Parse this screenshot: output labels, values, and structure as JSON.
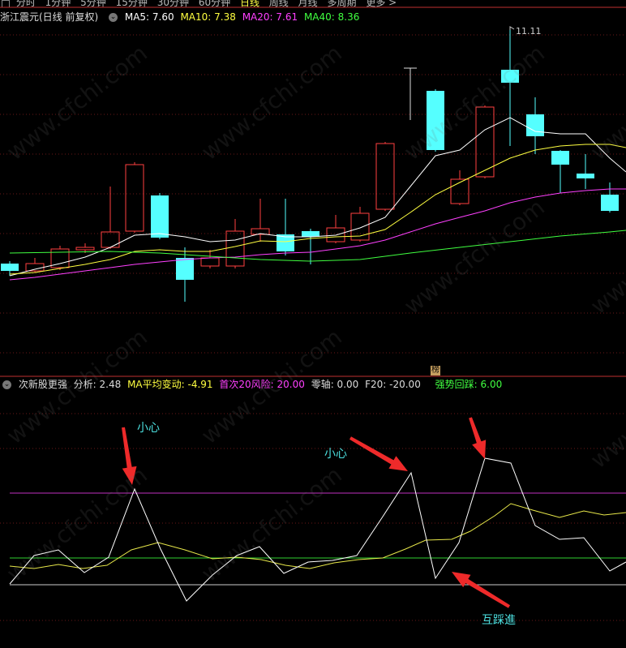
{
  "toolbar": {
    "periods": [
      "分时",
      "1分钟",
      "5分钟",
      "15分钟",
      "30分钟",
      "60分钟",
      "日线",
      "周线",
      "月线",
      "多周期",
      "更多"
    ],
    "active_period": "日线",
    "more_arrow": ">"
  },
  "main_chart": {
    "stock_title": "浙江震元(日线 前复权)",
    "ma_labels": [
      {
        "label": "MA5: 7.60",
        "color": "#ffffff"
      },
      {
        "label": "MA10: 7.38",
        "color": "#ffff40"
      },
      {
        "label": "MA20: 7.61",
        "color": "#ff40ff"
      },
      {
        "label": "MA40: 8.36",
        "color": "#40ff40"
      }
    ],
    "high_label": "11.11",
    "rank_badge": "榜",
    "up_color": "#ff4040",
    "down_color": "#55ffff"
  },
  "indicator": {
    "name": "次新股更强",
    "analysis": "分析: 2.48",
    "ma_change": "MA平均变动: -4.91",
    "first20": "首次20风险: 20.00",
    "zero_axis": "零轴: 0.00",
    "f20": "F20: -20.00",
    "strong_pullback": "强势回踩: 6.00",
    "annotations": {
      "careful_1": "小心",
      "careful_2": "小心",
      "mutual_step": "互踩進"
    }
  },
  "watermark": "www.cfchi.com"
}
